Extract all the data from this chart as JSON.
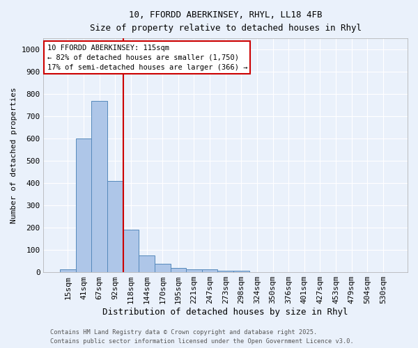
{
  "title_line1": "10, FFORDD ABERKINSEY, RHYL, LL18 4FB",
  "title_line2": "Size of property relative to detached houses in Rhyl",
  "xlabel": "Distribution of detached houses by size in Rhyl",
  "ylabel": "Number of detached properties",
  "categories": [
    "15sqm",
    "41sqm",
    "67sqm",
    "92sqm",
    "118sqm",
    "144sqm",
    "170sqm",
    "195sqm",
    "221sqm",
    "247sqm",
    "273sqm",
    "298sqm",
    "324sqm",
    "350sqm",
    "376sqm",
    "401sqm",
    "427sqm",
    "453sqm",
    "479sqm",
    "504sqm",
    "530sqm"
  ],
  "values": [
    13,
    600,
    770,
    410,
    190,
    75,
    38,
    18,
    12,
    13,
    5,
    5,
    0,
    0,
    0,
    0,
    0,
    0,
    0,
    0,
    0
  ],
  "bar_color": "#aec6e8",
  "bar_edge_color": "#5589bb",
  "vline_index": 3.5,
  "vline_color": "#cc0000",
  "annotation_title": "10 FFORDD ABERKINSEY: 115sqm",
  "annotation_line1": "← 82% of detached houses are smaller (1,750)",
  "annotation_line2": "17% of semi-detached houses are larger (366) →",
  "annotation_box_color": "#cc0000",
  "ylim": [
    0,
    1050
  ],
  "yticks": [
    0,
    100,
    200,
    300,
    400,
    500,
    600,
    700,
    800,
    900,
    1000
  ],
  "footer_line1": "Contains HM Land Registry data © Crown copyright and database right 2025.",
  "footer_line2": "Contains public sector information licensed under the Open Government Licence v3.0.",
  "bg_color": "#eaf1fb",
  "plot_bg_color": "#eaf1fb"
}
